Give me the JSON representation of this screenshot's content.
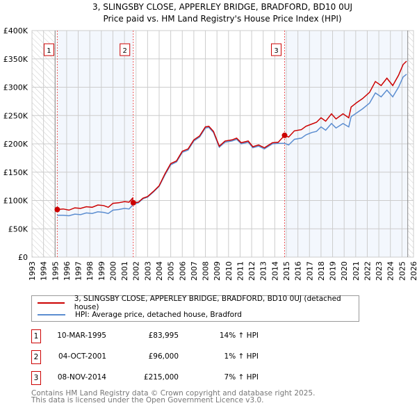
{
  "chart_data": {
    "type": "line",
    "title": "3, SLINGSBY CLOSE, APPERLEY BRIDGE, BRADFORD, BD10 0UJ",
    "subtitle": "Price paid vs. HM Land Registry's House Price Index (HPI)",
    "xlim": [
      1993,
      2026
    ],
    "ylim": [
      0,
      400000
    ],
    "x_ticks": [
      "1993",
      "1994",
      "1995",
      "1996",
      "1997",
      "1998",
      "1999",
      "2000",
      "2001",
      "2002",
      "2003",
      "2004",
      "2005",
      "2006",
      "2007",
      "2008",
      "2009",
      "2010",
      "2011",
      "2012",
      "2013",
      "2014",
      "2015",
      "2016",
      "2017",
      "2018",
      "2019",
      "2020",
      "2021",
      "2022",
      "2023",
      "2024",
      "2025",
      "2026"
    ],
    "y_ticks": [
      {
        "v": 0,
        "label": "£0"
      },
      {
        "v": 50000,
        "label": "£50K"
      },
      {
        "v": 100000,
        "label": "£100K"
      },
      {
        "v": 150000,
        "label": "£150K"
      },
      {
        "v": 200000,
        "label": "£200K"
      },
      {
        "v": 250000,
        "label": "£250K"
      },
      {
        "v": 300000,
        "label": "£300K"
      },
      {
        "v": 350000,
        "label": "£350K"
      },
      {
        "v": 400000,
        "label": "£400K"
      }
    ],
    "grid": true,
    "hatched_ranges": [
      [
        1993,
        1995.0
      ],
      [
        2025.5,
        2026
      ]
    ],
    "shaded_ranges": [
      [
        1995.19,
        2001.76
      ],
      [
        2014.85,
        2025.5
      ]
    ],
    "series": [
      {
        "name": "3, SLINGSBY CLOSE, APPERLEY BRIDGE, BRADFORD, BD10 0UJ (detached house)",
        "color": "#cc0000",
        "x": [
          1995.19,
          1995.7,
          1996.2,
          1996.7,
          1997.2,
          1997.7,
          1998.2,
          1998.7,
          1999.2,
          1999.6,
          2000,
          2000.5,
          2001,
          2001.4,
          2001.7,
          2001.76,
          2002.2,
          2002.6,
          2003,
          2003.5,
          2004,
          2004.5,
          2005,
          2005.5,
          2006,
          2006.5,
          2007,
          2007.5,
          2008,
          2008.3,
          2008.7,
          2009.2,
          2009.7,
          2010.3,
          2010.7,
          2011.1,
          2011.7,
          2012.1,
          2012.6,
          2013.1,
          2013.8,
          2014.3,
          2014.85,
          2015.2,
          2015.7,
          2016.3,
          2016.7,
          2017.2,
          2017.6,
          2018,
          2018.4,
          2018.9,
          2019.3,
          2019.9,
          2020.4,
          2020.6,
          2021.1,
          2021.6,
          2022.2,
          2022.7,
          2023.2,
          2023.7,
          2024.2,
          2024.7,
          2025.1,
          2025.4
        ],
        "y": [
          84000,
          85000,
          83000,
          87000,
          86000,
          89000,
          88000,
          92000,
          91000,
          88000,
          95000,
          96000,
          98000,
          97000,
          104000,
          96000,
          97000,
          104000,
          107000,
          116000,
          126000,
          147000,
          165000,
          170000,
          187000,
          191000,
          207000,
          214000,
          230000,
          231000,
          222000,
          196000,
          205000,
          207000,
          210000,
          202000,
          205000,
          195000,
          198000,
          193000,
          202000,
          203000,
          215000,
          212000,
          223000,
          225000,
          231000,
          235000,
          238000,
          246000,
          240000,
          253000,
          244000,
          253000,
          246000,
          265000,
          273000,
          280000,
          291000,
          310000,
          303000,
          316000,
          303000,
          321000,
          340000,
          346000
        ]
      },
      {
        "name": "HPI: Average price, detached house, Bradford",
        "color": "#5b8dd0",
        "x": [
          1995.19,
          1995.7,
          1996.2,
          1996.7,
          1997.2,
          1997.7,
          1998.2,
          1998.7,
          1999.2,
          1999.6,
          2000,
          2000.5,
          2001,
          2001.4,
          2001.76,
          2002.2,
          2002.6,
          2003,
          2003.5,
          2004,
          2004.5,
          2005,
          2005.5,
          2006,
          2006.5,
          2007,
          2007.5,
          2008,
          2008.3,
          2008.7,
          2009.2,
          2009.7,
          2010.3,
          2010.7,
          2011.1,
          2011.7,
          2012.1,
          2012.6,
          2013.1,
          2013.8,
          2014.3,
          2014.85,
          2015.2,
          2015.7,
          2016.3,
          2016.7,
          2017.2,
          2017.6,
          2018,
          2018.4,
          2018.9,
          2019.3,
          2019.9,
          2020.4,
          2020.6,
          2021.1,
          2021.6,
          2022.2,
          2022.7,
          2023.2,
          2023.7,
          2024.2,
          2024.7,
          2025.1,
          2025.4
        ],
        "y": [
          74000,
          74000,
          73000,
          76000,
          75000,
          78000,
          77000,
          80000,
          79000,
          77000,
          83000,
          84000,
          86000,
          85000,
          93000,
          96000,
          103000,
          106000,
          115000,
          125000,
          145000,
          163000,
          168000,
          185000,
          189000,
          205000,
          212000,
          228000,
          229000,
          220000,
          194000,
          203000,
          205000,
          208000,
          200000,
          203000,
          193000,
          196000,
          191000,
          200000,
          201000,
          201000,
          198000,
          208000,
          210000,
          216000,
          220000,
          222000,
          230000,
          224000,
          236000,
          228000,
          236000,
          230000,
          248000,
          255000,
          262000,
          272000,
          290000,
          283000,
          295000,
          283000,
          300000,
          318000,
          323000
        ]
      }
    ],
    "sales": [
      {
        "label": "1",
        "x": 1995.19,
        "y": 83995,
        "date": "10-MAR-1995",
        "price": "£83,995",
        "hpi": "14% ↑ HPI"
      },
      {
        "label": "2",
        "x": 2001.76,
        "y": 96000,
        "date": "04-OCT-2001",
        "price": "£96,000",
        "hpi": "1% ↑ HPI"
      },
      {
        "label": "3",
        "x": 2014.85,
        "y": 215000,
        "date": "08-NOV-2014",
        "price": "£215,000",
        "hpi": "7% ↑ HPI"
      }
    ],
    "legend_placement": "below"
  },
  "footer": {
    "line1": "Contains HM Land Registry data © Crown copyright and database right 2025.",
    "line2": "This data is licensed under the Open Government Licence v3.0."
  }
}
